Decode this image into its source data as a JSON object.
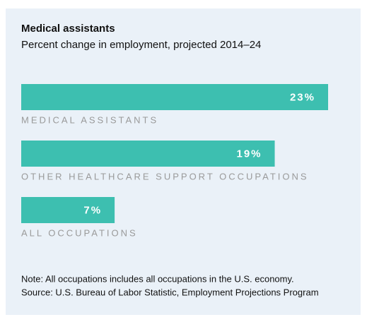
{
  "chart_data": {
    "type": "bar",
    "title": "Medical assistants",
    "subtitle": "Percent change in employment, projected 2014–24",
    "categories": [
      "MEDICAL ASSISTANTS",
      "OTHER HEALTHCARE SUPPORT OCCUPATIONS",
      "ALL OCCUPATIONS"
    ],
    "values": [
      23,
      19,
      7
    ],
    "value_labels": [
      "23%",
      "19%",
      "7%"
    ],
    "color": "#3dbfb0",
    "note": "Note: All occupations includes all occupations in the U.S. economy.",
    "source": "Source: U.S. Bureau of Labor Statistic, Employment Projections Program"
  }
}
